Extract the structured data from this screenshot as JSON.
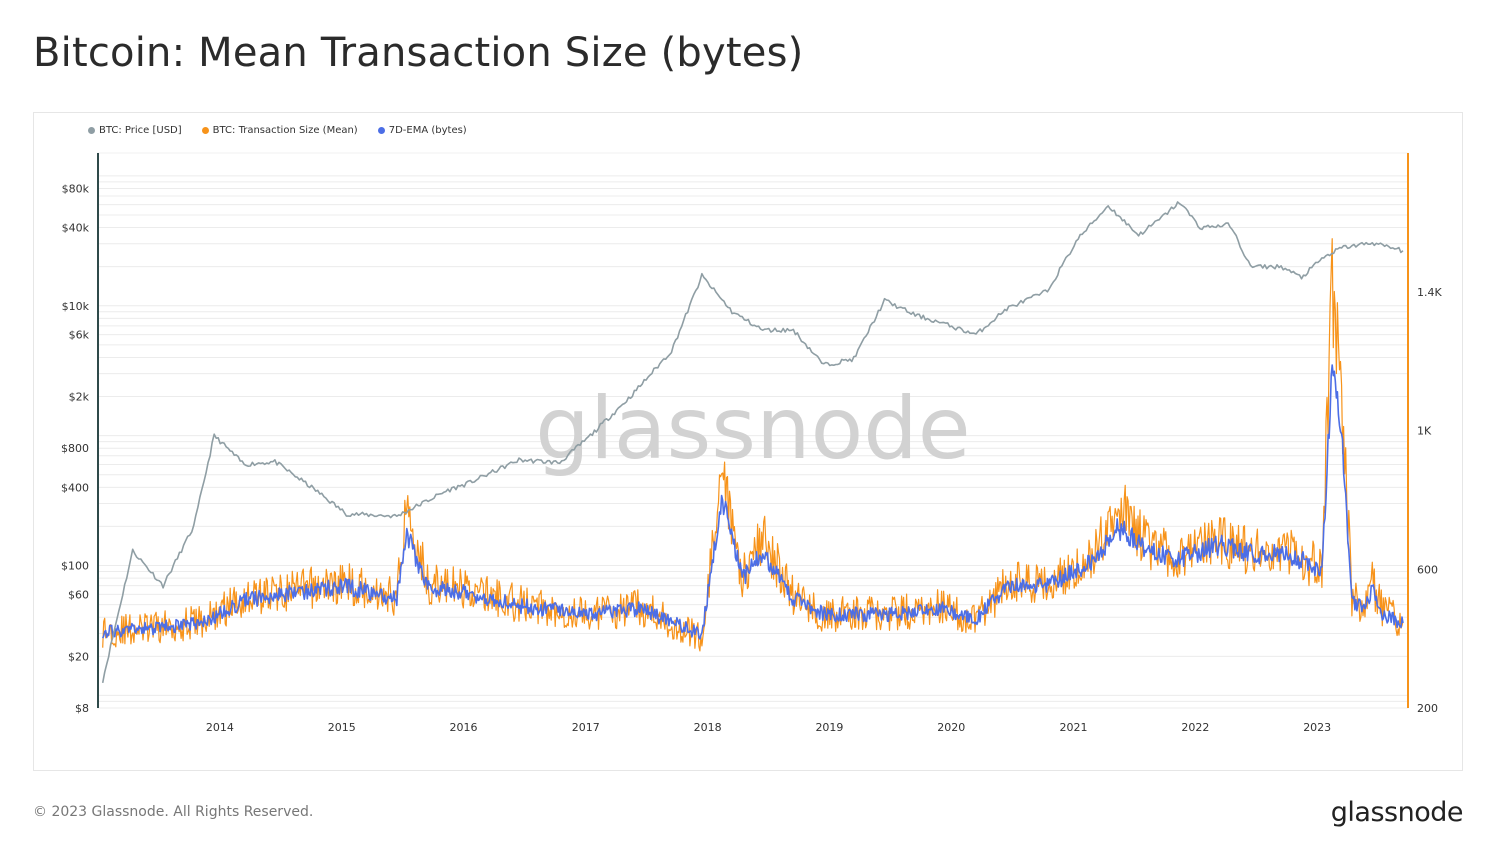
{
  "header": {
    "title": "Bitcoin: Mean Transaction Size (bytes)"
  },
  "footer": {
    "copyright": "© 2023 Glassnode. All Rights Reserved.",
    "logo": "glassnode"
  },
  "watermark": "glassnode",
  "colors": {
    "price": "#8f9ea4",
    "size": "#f7931a",
    "ema": "#4c6ee6",
    "axis_left": "#2f4a4a",
    "axis_right": "#f7931a",
    "grid": "#ececec"
  },
  "chart_data": {
    "type": "line",
    "title": "Bitcoin: Mean Transaction Size (bytes)",
    "legend": {
      "placement": "top-left",
      "entries": [
        {
          "label": "BTC: Price [USD]",
          "color": "#8f9ea4"
        },
        {
          "label": "BTC: Transaction Size (Mean)",
          "color": "#f7931a"
        },
        {
          "label": "7D-EMA (bytes)",
          "color": "#4c6ee6"
        }
      ]
    },
    "x_axis": {
      "range": [
        "2013-01-01",
        "2023-09-30"
      ],
      "ticks": [
        "2014",
        "2015",
        "2016",
        "2017",
        "2018",
        "2019",
        "2020",
        "2021",
        "2022",
        "2023"
      ]
    },
    "y_left": {
      "scale": "log",
      "range": [
        8,
        150000
      ],
      "ticks": [
        {
          "value": 8,
          "label": "$8"
        },
        {
          "value": 20,
          "label": "$20"
        },
        {
          "value": 60,
          "label": "$60"
        },
        {
          "value": 100,
          "label": "$100"
        },
        {
          "value": 400,
          "label": "$400"
        },
        {
          "value": 800,
          "label": "$800"
        },
        {
          "value": 2000,
          "label": "$2k"
        },
        {
          "value": 6000,
          "label": "$6k"
        },
        {
          "value": 10000,
          "label": "$10k"
        },
        {
          "value": 40000,
          "label": "$40k"
        },
        {
          "value": 80000,
          "label": "$80k"
        }
      ]
    },
    "y_right": {
      "scale": "linear",
      "range": [
        200,
        1800
      ],
      "ticks": [
        {
          "value": 200,
          "label": "200"
        },
        {
          "value": 600,
          "label": "600"
        },
        {
          "value": 1000,
          "label": "1K"
        },
        {
          "value": 1400,
          "label": "1.4K"
        }
      ]
    },
    "grid": true,
    "series": [
      {
        "name": "BTC: Price [USD]",
        "axis": "left",
        "x": [
          "2013-01",
          "2013-04",
          "2013-07",
          "2013-10",
          "2013-12",
          "2014-03",
          "2014-06",
          "2014-10",
          "2015-01",
          "2015-06",
          "2015-11",
          "2016-01",
          "2016-06",
          "2016-10",
          "2017-01",
          "2017-05",
          "2017-09",
          "2017-12",
          "2018-03",
          "2018-06",
          "2018-09",
          "2018-12",
          "2019-03",
          "2019-06",
          "2019-09",
          "2019-12",
          "2020-03",
          "2020-06",
          "2020-10",
          "2021-01",
          "2021-04",
          "2021-07",
          "2021-09",
          "2021-11",
          "2022-01",
          "2022-04",
          "2022-06",
          "2022-09",
          "2022-11",
          "2023-01",
          "2023-03",
          "2023-06",
          "2023-09"
        ],
        "values": [
          13,
          130,
          70,
          200,
          1000,
          600,
          630,
          380,
          250,
          240,
          380,
          430,
          650,
          620,
          1000,
          2000,
          4500,
          17000,
          9000,
          6500,
          6500,
          3500,
          3900,
          11000,
          8500,
          7200,
          6000,
          9500,
          13000,
          33000,
          59000,
          35000,
          46000,
          63000,
          40000,
          42000,
          20000,
          20000,
          16500,
          23000,
          28000,
          30500,
          26500
        ]
      },
      {
        "name": "BTC: Transaction Size (Mean)",
        "axis": "right",
        "x": [
          "2013-01",
          "2013-06",
          "2013-11",
          "2014-03",
          "2014-08",
          "2015-01",
          "2015-06",
          "2015-07",
          "2015-09",
          "2016-01",
          "2016-06",
          "2017-01",
          "2017-06",
          "2017-12",
          "2018-01",
          "2018-02",
          "2018-04",
          "2018-06",
          "2018-09",
          "2018-12",
          "2019-06",
          "2019-12",
          "2020-03",
          "2020-06",
          "2020-10",
          "2021-01",
          "2021-03",
          "2021-05",
          "2021-08",
          "2021-11",
          "2022-03",
          "2022-06",
          "2022-10",
          "2023-01",
          "2023-02",
          "2023-03",
          "2023-04",
          "2023-05",
          "2023-06",
          "2023-07",
          "2023-09"
        ],
        "values": [
          420,
          430,
          450,
          520,
          540,
          560,
          520,
          800,
          560,
          540,
          500,
          470,
          490,
          400,
          650,
          850,
          580,
          690,
          520,
          470,
          470,
          490,
          450,
          560,
          560,
          610,
          660,
          800,
          660,
          640,
          680,
          650,
          650,
          600,
          1420,
          1100,
          520,
          500,
          560,
          480,
          450
        ]
      },
      {
        "name": "7D-EMA (bytes)",
        "axis": "right",
        "x": [
          "2013-01",
          "2013-06",
          "2013-11",
          "2014-03",
          "2014-08",
          "2015-01",
          "2015-06",
          "2015-07",
          "2015-09",
          "2016-01",
          "2016-06",
          "2017-01",
          "2017-06",
          "2017-12",
          "2018-01",
          "2018-02",
          "2018-04",
          "2018-06",
          "2018-09",
          "2018-12",
          "2019-06",
          "2019-12",
          "2020-03",
          "2020-06",
          "2020-10",
          "2021-01",
          "2021-03",
          "2021-05",
          "2021-08",
          "2021-11",
          "2022-03",
          "2022-06",
          "2022-10",
          "2023-01",
          "2023-02",
          "2023-03",
          "2023-04",
          "2023-05",
          "2023-06",
          "2023-07",
          "2023-09"
        ],
        "values": [
          420,
          430,
          445,
          510,
          535,
          550,
          515,
          700,
          550,
          530,
          495,
          470,
          485,
          410,
          620,
          800,
          570,
          650,
          515,
          470,
          470,
          485,
          455,
          550,
          555,
          600,
          640,
          720,
          650,
          630,
          670,
          645,
          640,
          595,
          1200,
          1000,
          510,
          490,
          540,
          470,
          445
        ]
      }
    ]
  }
}
